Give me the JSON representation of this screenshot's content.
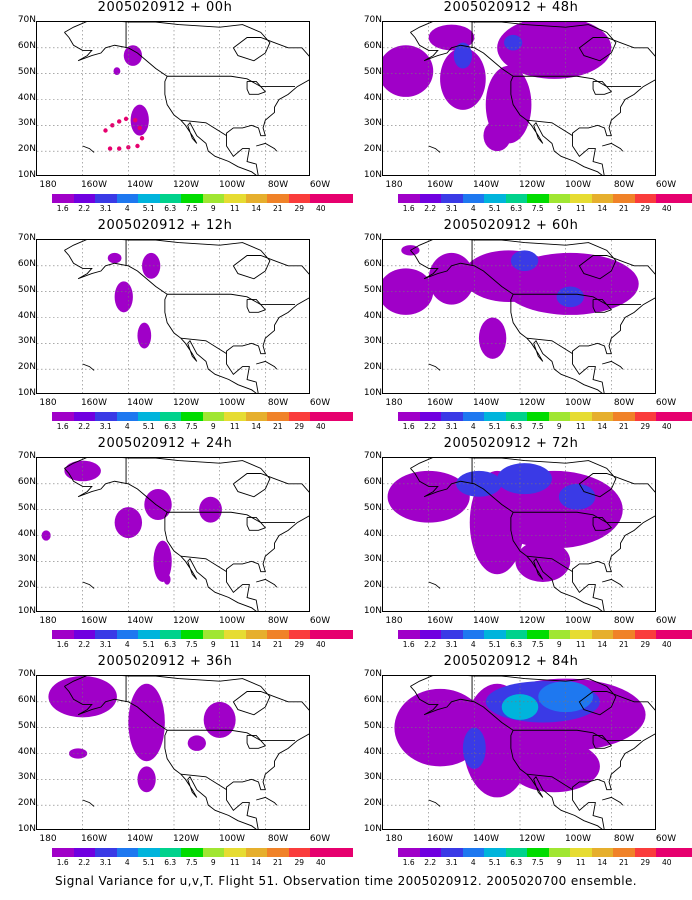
{
  "panels": [
    {
      "title": "2005020912 + 00h"
    },
    {
      "title": "2005020912 + 48h"
    },
    {
      "title": "2005020912 + 12h"
    },
    {
      "title": "2005020912 + 60h"
    },
    {
      "title": "2005020912 + 24h"
    },
    {
      "title": "2005020912 + 72h"
    },
    {
      "title": "2005020912 + 36h"
    },
    {
      "title": "2005020912 + 84h"
    }
  ],
  "lat_labels": [
    "70N",
    "60N",
    "50N",
    "40N",
    "30N",
    "20N",
    "10N"
  ],
  "lon_labels": [
    "180",
    "160W",
    "140W",
    "120W",
    "100W",
    "80W",
    "60W"
  ],
  "colorbar": {
    "labels": [
      "1.6",
      "2.2",
      "3.1",
      "4",
      "5.1",
      "6.3",
      "7.5",
      "9",
      "11",
      "14",
      "21",
      "29",
      "40"
    ],
    "colors": [
      "#a000c8",
      "#7000e0",
      "#3a3ae6",
      "#1e78f0",
      "#00b4dc",
      "#00d28c",
      "#00dc00",
      "#a0e632",
      "#e6dc32",
      "#e6af2d",
      "#f08228",
      "#fa3c3c",
      "#e6006e"
    ]
  },
  "caption": "Signal Variance for u,v,T. Flight 51. Observation time 2005020912. 2005020700 ensemble.",
  "chart_data": {
    "type": "heatmap",
    "variable": "Signal Variance for u,v,T",
    "flight": "51",
    "observation_time": "2005020912",
    "ensemble": "2005020700",
    "forecast_hours": [
      0,
      12,
      24,
      36,
      48,
      60,
      72,
      84
    ],
    "lat_range": [
      "10N",
      "70N"
    ],
    "lon_range": [
      "180",
      "60W"
    ],
    "color_levels": [
      1.6,
      2.2,
      3.1,
      4,
      5.1,
      6.3,
      7.5,
      9,
      11,
      14,
      21,
      29,
      40
    ]
  }
}
